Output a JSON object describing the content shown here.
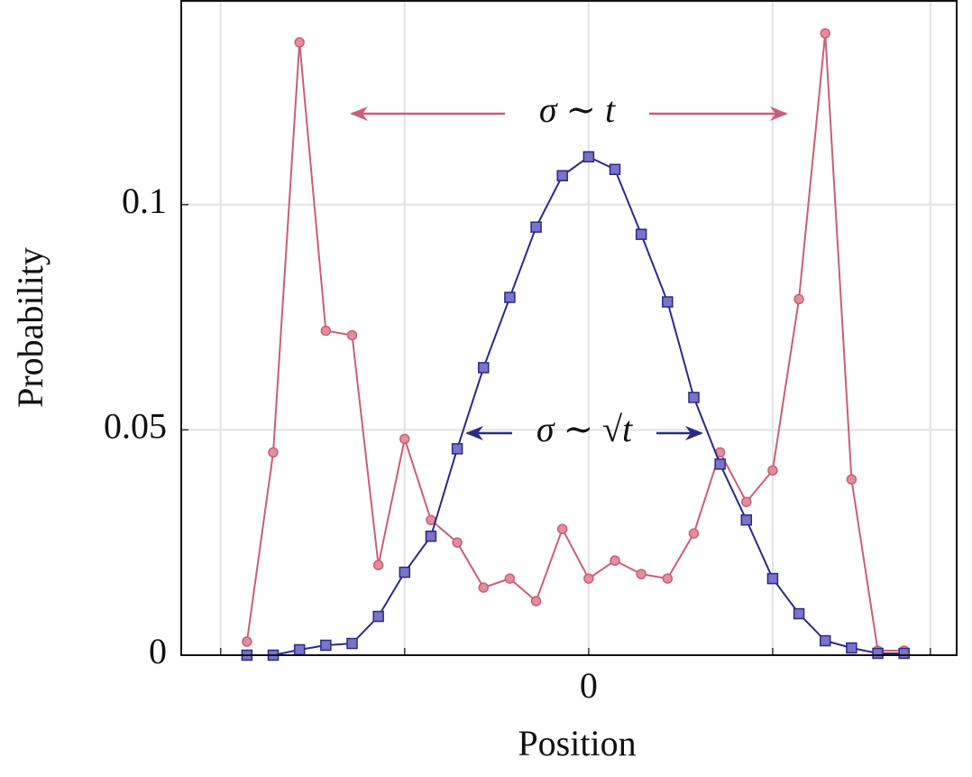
{
  "chart_data": {
    "type": "line",
    "x_label": "Position",
    "y_label": "Probability",
    "x": [
      -13,
      -12,
      -11,
      -10,
      -9,
      -8,
      -7,
      -6,
      -5,
      -4,
      -3,
      -2,
      -1,
      0,
      1,
      2,
      3,
      4,
      5,
      6,
      7,
      8,
      9,
      10,
      11,
      12
    ],
    "series": [
      {
        "color": "#c95e78",
        "marker_fill": "#e48d9f",
        "marker": "circle",
        "values": [
          0.003,
          0.045,
          0.136,
          0.072,
          0.071,
          0.02,
          0.048,
          0.03,
          0.025,
          0.015,
          0.017,
          0.012,
          0.028,
          0.017,
          0.021,
          0.018,
          0.017,
          0.027,
          0.045,
          0.034,
          0.041,
          0.079,
          0.138,
          0.039,
          0.001,
          0.001
        ]
      },
      {
        "color": "#2b2a86",
        "marker_fill": "#7b72c9",
        "marker": "square",
        "values": [
          0,
          0,
          0.0012,
          0.0022,
          0.0026,
          0.0086,
          0.0184,
          0.0264,
          0.0458,
          0.0638,
          0.0794,
          0.095,
          0.1064,
          0.1106,
          0.1078,
          0.0934,
          0.0784,
          0.0572,
          0.0424,
          0.03,
          0.017,
          0.0092,
          0.0032,
          0.0016,
          0.0004,
          0.0004
        ]
      }
    ],
    "xlim": [
      -15.5,
      14
    ],
    "ylim": [
      0,
      0.1452
    ],
    "xticks": [
      0
    ],
    "xgrid": [
      -14,
      -7,
      0,
      7,
      13
    ],
    "yticks": [
      0,
      0.05,
      0.1
    ],
    "grid": true,
    "annotations": [
      {
        "text": "σ ∼ t",
        "color": "#c95e78"
      },
      {
        "text": "σ ∼ √t",
        "color": "#2b2a86"
      }
    ]
  }
}
